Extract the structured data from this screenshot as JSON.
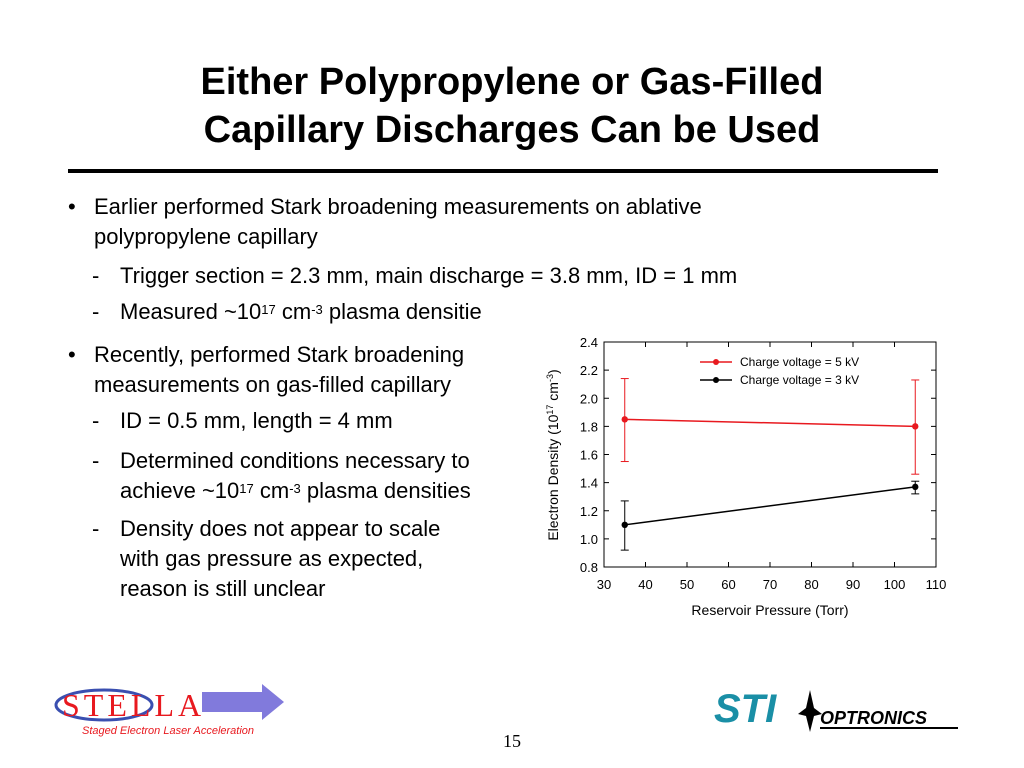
{
  "slide": {
    "title_line1": "Either Polypropylene or Gas-Filled",
    "title_line2": "Capillary Discharges Can be Used",
    "page_number": "15"
  },
  "bullets": [
    {
      "lines": [
        "Earlier performed Stark broadening measurements on ablative",
        "polypropylene capillary"
      ],
      "subs": [
        {
          "text": "Trigger section = 2.3 mm, main discharge = 3.8 mm, ID = 1 mm"
        },
        {
          "pre": "Measured ~10",
          "sup1": "17",
          "mid": " cm",
          "sup2": "-3",
          "post": " plasma densitie"
        }
      ]
    },
    {
      "lines": [
        "Recently, performed Stark broadening",
        "measurements on gas-filled capillary"
      ],
      "subs": [
        {
          "text": "ID = 0.5 mm, length = 4 mm"
        },
        {
          "line1": "Determined conditions necessary to",
          "pre": "achieve ~10",
          "sup1": "17",
          "mid": " cm",
          "sup2": "-3",
          "post": " plasma densities"
        },
        {
          "line1": "Density does not appear to scale",
          "line2": "with gas pressure as expected,",
          "line3": "reason is still unclear"
        }
      ]
    }
  ],
  "bullet_symbol": "•",
  "dash_symbol": "-",
  "chart_data": {
    "type": "line",
    "xlabel": "Reservoir Pressure (Torr)",
    "ylabel_pre": "Electron Density (10",
    "ylabel_sup1": "17",
    "ylabel_mid": " cm",
    "ylabel_sup2": "-3",
    "ylabel_post": ")",
    "xlim": [
      30,
      110
    ],
    "ylim": [
      0.8,
      2.4
    ],
    "xticks": [
      "30",
      "40",
      "50",
      "60",
      "70",
      "80",
      "90",
      "100",
      "110"
    ],
    "yticks": [
      "0.8",
      "1.0",
      "1.2",
      "1.4",
      "1.6",
      "1.8",
      "2.0",
      "2.2",
      "2.4"
    ],
    "legend_position": "top-right",
    "grid": false,
    "series": [
      {
        "name": "Charge voltage = 5 kV",
        "color": "#e8191f",
        "x": [
          35,
          105
        ],
        "y": [
          1.85,
          1.8
        ],
        "err_low": [
          0.3,
          0.34
        ],
        "err_high": [
          0.29,
          0.33
        ]
      },
      {
        "name": "Charge voltage = 3 kV",
        "color": "#000000",
        "x": [
          35,
          105
        ],
        "y": [
          1.1,
          1.37
        ],
        "err_low": [
          0.18,
          0.05
        ],
        "err_high": [
          0.17,
          0.04
        ]
      }
    ]
  },
  "logos": {
    "stella_text": "STELLA",
    "stella_caption": "Staged Electron Laser Acceleration",
    "sti_text": "STI",
    "optronics_text": "OPTRONICS",
    "stella_color": "#e8191f",
    "sti_color": "#1a8fa6"
  }
}
